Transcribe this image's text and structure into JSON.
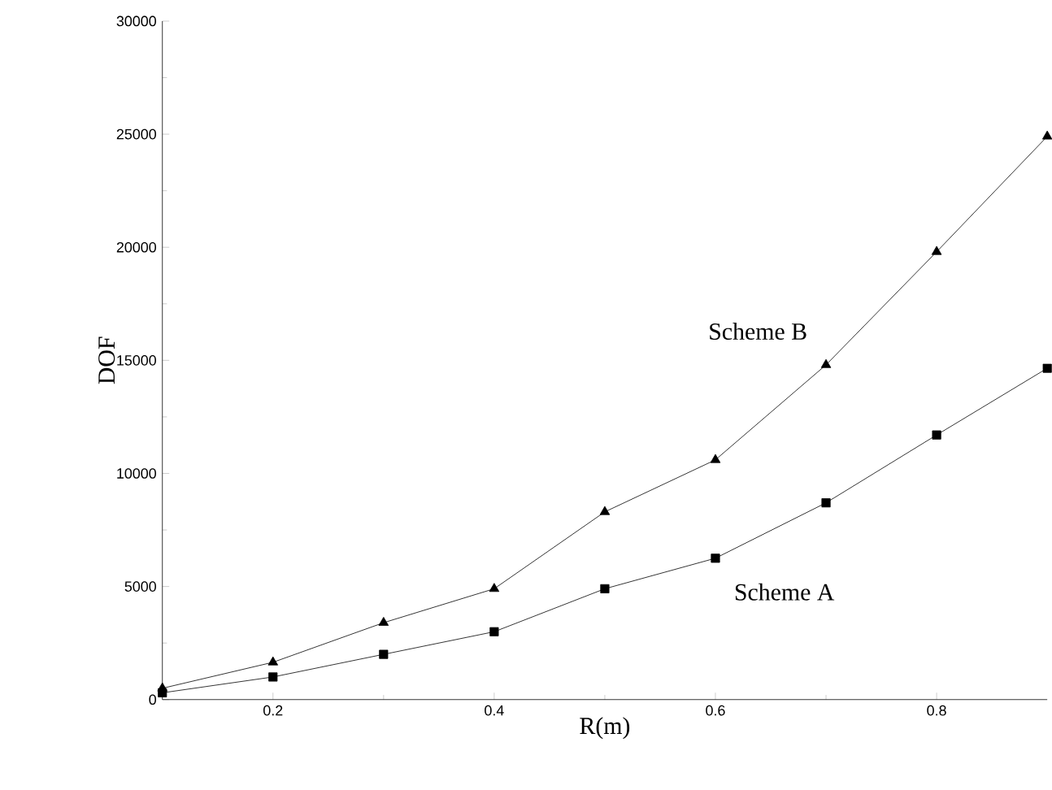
{
  "chart_data": {
    "type": "line",
    "xlabel": "R(m)",
    "ylabel": "DOF",
    "x": [
      0.1,
      0.2,
      0.3,
      0.4,
      0.5,
      0.6,
      0.7,
      0.8,
      0.9
    ],
    "series": [
      {
        "name": "Scheme A",
        "color": "#000000",
        "marker": "square",
        "values": [
          300,
          1000,
          2000,
          3000,
          4900,
          6250,
          8700,
          11700,
          14650
        ]
      },
      {
        "name": "Scheme B",
        "color": "#000000",
        "marker": "triangle",
        "values": [
          500,
          1650,
          3400,
          4900,
          8300,
          10600,
          14800,
          19800,
          24900
        ]
      }
    ],
    "xlim": [
      0.1,
      0.9
    ],
    "xticks": [
      0.2,
      0.4,
      0.6,
      0.8
    ],
    "ylim": [
      0,
      30000
    ],
    "yticks": [
      0,
      5000,
      10000,
      15000,
      20000,
      25000,
      30000
    ],
    "grid": false,
    "line_style": "solid"
  }
}
